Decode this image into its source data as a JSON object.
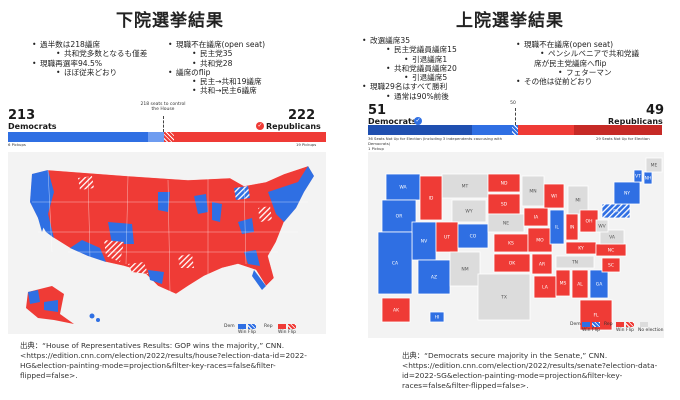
{
  "colors": {
    "dem": "#2f6fe3",
    "rep": "#ef3b36",
    "no_election": "#dcdcdc"
  },
  "house": {
    "title": "下院選挙結果",
    "bullets_a": [
      {
        "level": 1,
        "text": "過半数は218議席"
      },
      {
        "level": 2,
        "text": "共和党多数となるも僅差"
      },
      {
        "level": 1,
        "text": "現職再選率94.5%"
      },
      {
        "level": 2,
        "text": "ほぼ従来どおり"
      }
    ],
    "bullets_b": [
      {
        "level": 1,
        "text": "現職不在議席(open seat)"
      },
      {
        "level": 2,
        "text": "民主党35"
      },
      {
        "level": 2,
        "text": "共和党28"
      },
      {
        "level": 1,
        "text": "議席のflip"
      },
      {
        "level": 2,
        "text": "民主→共和19議席"
      },
      {
        "level": 2,
        "text": "共和→民主6議席"
      }
    ],
    "dem_seats": "213",
    "dem_label": "Democrats",
    "rep_seats": "222",
    "rep_label": "Republicans",
    "threshold": "218 seats to control the House",
    "dem_pickups": "6 Pickups",
    "rep_pickups": "19 Pickups",
    "legend": {
      "dem": "Dem",
      "rep": "Rep",
      "win": "Win",
      "flip": "Flip"
    },
    "source": "出典：“House of Representatives Results: GOP wins the majority,” CNN. <https://edition.cnn.com/election/2022/results/house?election-data-id=2022-HG&election-painting-mode=projection&filter-key-races=false&filter-flipped=false>."
  },
  "senate": {
    "title": "上院選挙結果",
    "bullets_a": [
      {
        "level": 1,
        "text": "改選議席35"
      },
      {
        "level": 2,
        "text": "民主党議員議席15"
      },
      {
        "level": 3,
        "text": "引退議席1"
      },
      {
        "level": 2,
        "text": "共和党議員議席20"
      },
      {
        "level": 3,
        "text": "引退議席5"
      },
      {
        "level": 1,
        "text": "現職29名はすべて勝利"
      },
      {
        "level": 2,
        "text": "通常は90%前後"
      }
    ],
    "bullets_b": [
      {
        "level": 1,
        "text": "現職不在議席(open seat)"
      },
      {
        "level": 2,
        "text": "ペンシルベニアで共和党議"
      },
      {
        "level": 0,
        "text": "席が民主党議席へflip"
      },
      {
        "level": 3,
        "text": "フェターマン"
      },
      {
        "level": 1,
        "text": "その他は従前どおり"
      }
    ],
    "dem_seats": "51",
    "dem_label": "Democrats",
    "rep_seats": "49",
    "rep_label": "Republicans",
    "threshold": "50",
    "dem_not_up": "36 Seats Not Up for Election (including 3 independents caucusing with Democrats)",
    "rep_not_up": "29 Seats Not Up for Election",
    "dem_pickups": "1 Pickup",
    "legend": {
      "dem": "Dem",
      "rep": "Rep",
      "win": "Win",
      "flip": "Flip",
      "no_election": "No election"
    },
    "state_labels": [
      "MT",
      "ND",
      "WA",
      "OR",
      "ID",
      "WY",
      "NV",
      "UT",
      "CA",
      "CO",
      "AZ",
      "NM",
      "SD",
      "NE",
      "KS",
      "OK",
      "TX",
      "MN",
      "IA",
      "MO",
      "AR",
      "LA",
      "WI",
      "IL",
      "MI",
      "IN",
      "OH",
      "KY",
      "TN",
      "MS",
      "AL",
      "GA",
      "FL",
      "SC",
      "NC",
      "VA",
      "WV",
      "PA",
      "NY",
      "VT",
      "NH",
      "ME",
      "AK",
      "HI"
    ],
    "source": "出典：“Democrats secure majority in the Senate,” CNN. <https://edition.cnn.com/election/2022/results/senate?election-data-id=2022-SG&election-painting-mode=projection&filter-key-races=false&filter-flipped=false>."
  }
}
